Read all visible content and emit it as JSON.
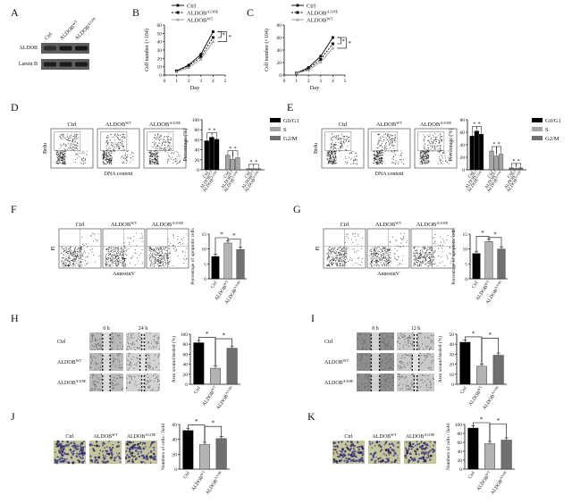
{
  "chart_data": [
    {
      "panel": "A",
      "type": "blot",
      "lanes": [
        "Ctrl",
        "ALDOB^WT",
        "ALDOB^A318E"
      ],
      "bands": [
        "ALDOB",
        "Lamin B"
      ]
    },
    {
      "panel": "B",
      "type": "line",
      "x": [
        1,
        2,
        3,
        4
      ],
      "xlabel": "Day",
      "ylabel": "Cell number (×10^4)",
      "xlim": [
        0,
        5
      ],
      "ylim": [
        0,
        60
      ],
      "xticks": [
        0,
        1,
        2,
        3,
        4,
        5
      ],
      "yticks": [
        0,
        10,
        20,
        30,
        40,
        50,
        60
      ],
      "series": [
        {
          "name": "Ctrl",
          "values": [
            5,
            12,
            25,
            52
          ]
        },
        {
          "name": "ALDOB^A318E",
          "values": [
            5,
            11,
            22,
            45
          ]
        },
        {
          "name": "ALDOB^WT",
          "values": [
            4,
            9,
            19,
            40
          ]
        }
      ],
      "sig": [
        "*",
        "*"
      ]
    },
    {
      "panel": "C",
      "type": "line",
      "x": [
        1,
        2,
        3,
        4
      ],
      "xlabel": "Day",
      "ylabel": "Cell number (×10^4)",
      "xlim": [
        0,
        5
      ],
      "ylim": [
        0,
        80
      ],
      "xticks": [
        0,
        1,
        2,
        3,
        4,
        5
      ],
      "yticks": [
        0,
        20,
        40,
        60,
        80
      ],
      "series": [
        {
          "name": "Ctrl",
          "values": [
            3,
            12,
            30,
            60
          ]
        },
        {
          "name": "ALDOB^A318E",
          "values": [
            3,
            10,
            25,
            50
          ]
        },
        {
          "name": "ALDOB^WT",
          "values": [
            3,
            8,
            21,
            43
          ]
        }
      ],
      "sig": [
        "*",
        "*"
      ]
    },
    {
      "panel": "D",
      "type": "bar",
      "flow": {
        "titles": [
          "Ctrl",
          "ALDOB^WT",
          "ALDOB^A318E"
        ],
        "xlabel": "DNA content",
        "ylabel": "Brdu"
      },
      "ylabel": "Percentage (%)",
      "ylim": [
        0,
        100
      ],
      "yticks": [
        0,
        20,
        40,
        60,
        80,
        100
      ],
      "groups": [
        "G0/G1",
        "S",
        "G2/M"
      ],
      "group_colors": [
        "#000000",
        "#a6a6a6",
        "#6f6f6f"
      ],
      "categories": [
        "Ctrl",
        "ALDOB^WT",
        "ALDOB^A318E"
      ],
      "values": [
        [
          58,
          65,
          61
        ],
        [
          29,
          21,
          24
        ],
        [
          2,
          2,
          2
        ]
      ],
      "sig": [
        "*",
        "*",
        "*",
        "*",
        "*",
        "*"
      ]
    },
    {
      "panel": "E",
      "type": "bar",
      "flow": {
        "titles": [
          "Ctrl",
          "ALDOB^WT",
          "ALDOB^A318E"
        ],
        "xlabel": "DNA content",
        "ylabel": "Brdu"
      },
      "ylabel": "Percentage (%)",
      "ylim": [
        0,
        80
      ],
      "yticks": [
        0,
        20,
        40,
        60,
        80
      ],
      "groups": [
        "G0/G1",
        "S",
        "G2/M"
      ],
      "group_colors": [
        "#000000",
        "#a6a6a6",
        "#6f6f6f"
      ],
      "categories": [
        "Ctrl",
        "ALDOB^WT",
        "ALDOB^A318E"
      ],
      "values": [
        [
          54,
          62,
          57
        ],
        [
          30,
          22,
          25
        ],
        [
          3,
          2,
          3
        ]
      ],
      "sig": [
        "*",
        "*",
        "*",
        "*",
        "*",
        "*"
      ]
    },
    {
      "panel": "F",
      "type": "bar",
      "flow": {
        "titles": [
          "Ctrl",
          "ALDOB^WT",
          "ALDOB^A318E"
        ],
        "xlabel": "AnnexinV",
        "ylabel": "PI"
      },
      "ylabel": "Percentage of apoptotic cells",
      "ylim": [
        0,
        15
      ],
      "yticks": [
        0,
        5,
        10,
        15
      ],
      "categories": [
        "Ctrl",
        "ALDOB^WT",
        "ALDOB^A318E"
      ],
      "values": [
        7.5,
        12,
        9.8
      ],
      "colors": [
        "#000000",
        "#b3b3b3",
        "#707070"
      ],
      "sig": [
        "*",
        "*"
      ]
    },
    {
      "panel": "G",
      "type": "bar",
      "flow": {
        "titles": [
          "Ctrl",
          "ALDOB^WT",
          "ALDOB^A318E"
        ],
        "xlabel": "AnnexinV",
        "ylabel": "PI"
      },
      "ylabel": "Percentage of apoptotic cells",
      "ylim": [
        0,
        15
      ],
      "yticks": [
        0,
        5,
        10,
        15
      ],
      "categories": [
        "Ctrl",
        "ALDOB^WT",
        "ALDOB^A318E"
      ],
      "values": [
        8.5,
        12.5,
        10
      ],
      "colors": [
        "#000000",
        "#b3b3b3",
        "#707070"
      ],
      "sig": [
        "*",
        "*"
      ]
    },
    {
      "panel": "H",
      "type": "bar",
      "images": {
        "rows": [
          "Ctrl",
          "ALDOB^WT",
          "ALDOB^A318E"
        ],
        "cols": [
          "0 h",
          "24 h"
        ]
      },
      "ylabel": "Area wound healed (%)",
      "ylim": [
        0,
        100
      ],
      "yticks": [
        0,
        20,
        40,
        60,
        80,
        100
      ],
      "categories": [
        "Ctrl",
        "ALDOB^WT",
        "ALDOB^A318E"
      ],
      "values": [
        83,
        32,
        72
      ],
      "colors": [
        "#000000",
        "#b3b3b3",
        "#707070"
      ],
      "sig": [
        "*",
        "*"
      ]
    },
    {
      "panel": "I",
      "type": "bar",
      "images": {
        "rows": [
          "Ctrl",
          "ALDOB^WT",
          "ALDOB^A318E"
        ],
        "cols": [
          "0 h",
          "12 h"
        ]
      },
      "ylabel": "Area wound healed (%)",
      "ylim": [
        0,
        50
      ],
      "yticks": [
        0,
        10,
        20,
        30,
        40,
        50
      ],
      "categories": [
        "Ctrl",
        "ALDOB^WT",
        "ALDOB^A318E"
      ],
      "values": [
        42,
        18,
        29
      ],
      "colors": [
        "#000000",
        "#b3b3b3",
        "#707070"
      ],
      "sig": [
        "*",
        "*"
      ]
    },
    {
      "panel": "J",
      "type": "bar",
      "images": {
        "cols": [
          "Ctrl",
          "ALDOB^WT",
          "ALDOB^A318E"
        ]
      },
      "ylabel": "Numbers of cells / field",
      "ylim": [
        0,
        60
      ],
      "yticks": [
        0,
        20,
        40,
        60
      ],
      "categories": [
        "Ctrl",
        "ALDOB^WT",
        "ALDOB^A318E"
      ],
      "values": [
        52,
        33,
        41
      ],
      "colors": [
        "#000000",
        "#b3b3b3",
        "#707070"
      ],
      "sig": [
        "*",
        "*"
      ]
    },
    {
      "panel": "K",
      "type": "bar",
      "images": {
        "cols": [
          "Ctrl",
          "ALDOB^WT",
          "ALDOB^A318E"
        ]
      },
      "ylabel": "Numbers of cells / field",
      "ylim": [
        0,
        100
      ],
      "yticks": [
        0,
        20,
        40,
        60,
        80,
        100
      ],
      "categories": [
        "Ctrl",
        "ALDOB^WT",
        "ALDOB^A318E"
      ],
      "values": [
        92,
        57,
        65
      ],
      "colors": [
        "#000000",
        "#b3b3b3",
        "#707070"
      ],
      "sig": [
        "*",
        "*"
      ]
    }
  ]
}
